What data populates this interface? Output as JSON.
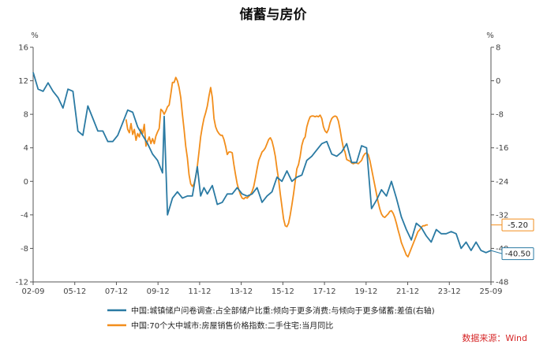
{
  "chart_data": {
    "type": "line",
    "title": "储蓄与房价",
    "left_unit": "%",
    "right_unit": "%",
    "x_tick_labels": [
      "02-09",
      "05-12",
      "07-12",
      "09-12",
      "11-12",
      "13-12",
      "15-12",
      "17-12",
      "19-12",
      "21-12",
      "23-12",
      "25-09"
    ],
    "x_range_months": [
      0,
      276
    ],
    "left_axis": {
      "range": [
        -12,
        16
      ],
      "ticks": [
        16,
        12,
        8,
        4,
        0,
        -4,
        -8,
        -12
      ]
    },
    "right_axis": {
      "range": [
        -48,
        8
      ],
      "ticks": [
        8,
        0,
        -8,
        -16,
        -24,
        -32,
        -40,
        -48
      ]
    },
    "series": [
      {
        "name": "中国:70个大中城市:房屋销售价格指数:二手住宅:当月同比",
        "axis": "left",
        "color": "#f28e1c",
        "end_label": "-5.20",
        "points": [
          [
            56,
            7.4
          ],
          [
            57,
            6.2
          ],
          [
            58,
            5.8
          ],
          [
            59,
            6.9
          ],
          [
            60,
            5.6
          ],
          [
            61,
            6.2
          ],
          [
            62,
            4.9
          ],
          [
            63,
            5.7
          ],
          [
            64,
            5.3
          ],
          [
            65,
            6.2
          ],
          [
            66,
            5.7
          ],
          [
            67,
            6.8
          ],
          [
            68,
            4.2
          ],
          [
            69,
            4.8
          ],
          [
            70,
            5.3
          ],
          [
            71,
            4.5
          ],
          [
            72,
            5.1
          ],
          [
            73,
            4.5
          ],
          [
            74,
            5.4
          ],
          [
            75,
            5.9
          ],
          [
            76,
            6.3
          ],
          [
            77,
            8.6
          ],
          [
            78,
            8.4
          ],
          [
            79,
            8.0
          ],
          [
            80,
            8.4
          ],
          [
            81,
            8.9
          ],
          [
            82,
            9.1
          ],
          [
            83,
            10.4
          ],
          [
            84,
            11.8
          ],
          [
            85,
            11.8
          ],
          [
            86,
            12.4
          ],
          [
            87,
            12.0
          ],
          [
            88,
            11.2
          ],
          [
            89,
            10.0
          ],
          [
            90,
            8.0
          ],
          [
            91,
            6.2
          ],
          [
            92,
            4.2
          ],
          [
            93,
            2.8
          ],
          [
            94,
            0.8
          ],
          [
            95,
            -0.3
          ],
          [
            96,
            -0.6
          ],
          [
            97,
            -0.3
          ],
          [
            98,
            0.5
          ],
          [
            99,
            1.8
          ],
          [
            100,
            3.5
          ],
          [
            101,
            5.3
          ],
          [
            102,
            6.5
          ],
          [
            103,
            7.5
          ],
          [
            104,
            8.2
          ],
          [
            105,
            9.0
          ],
          [
            106,
            10.2
          ],
          [
            107,
            11.2
          ],
          [
            108,
            10.0
          ],
          [
            109,
            7.5
          ],
          [
            110,
            6.5
          ],
          [
            111,
            6.0
          ],
          [
            112,
            5.7
          ],
          [
            113,
            5.5
          ],
          [
            114,
            5.5
          ],
          [
            115,
            5.0
          ],
          [
            116,
            4.2
          ],
          [
            117,
            3.2
          ],
          [
            118,
            3.5
          ],
          [
            119,
            3.5
          ],
          [
            120,
            3.4
          ],
          [
            121,
            2.0
          ],
          [
            122,
            0.8
          ],
          [
            123,
            -0.3
          ],
          [
            124,
            -1.0
          ],
          [
            125,
            -1.6
          ],
          [
            126,
            -2.0
          ],
          [
            127,
            -2.1
          ],
          [
            128,
            -1.9
          ],
          [
            129,
            -2.0
          ],
          [
            130,
            -1.8
          ],
          [
            131,
            -1.6
          ],
          [
            132,
            -1.2
          ],
          [
            133,
            -0.6
          ],
          [
            134,
            0.4
          ],
          [
            135,
            1.5
          ],
          [
            136,
            2.5
          ],
          [
            137,
            3.0
          ],
          [
            138,
            3.5
          ],
          [
            139,
            3.7
          ],
          [
            140,
            4.0
          ],
          [
            141,
            4.5
          ],
          [
            142,
            5.0
          ],
          [
            143,
            5.2
          ],
          [
            144,
            4.8
          ],
          [
            145,
            4.0
          ],
          [
            146,
            3.0
          ],
          [
            147,
            1.5
          ],
          [
            148,
            0.2
          ],
          [
            149,
            -1.5
          ],
          [
            150,
            -3.0
          ],
          [
            151,
            -4.5
          ],
          [
            152,
            -5.3
          ],
          [
            153,
            -5.4
          ],
          [
            154,
            -5.0
          ],
          [
            155,
            -4.0
          ],
          [
            156,
            -2.8
          ],
          [
            157,
            -1.5
          ],
          [
            158,
            0.0
          ],
          [
            159,
            1.5
          ],
          [
            160,
            2.0
          ],
          [
            161,
            3.0
          ],
          [
            162,
            4.3
          ],
          [
            163,
            5.0
          ],
          [
            164,
            5.3
          ],
          [
            165,
            6.5
          ],
          [
            166,
            7.2
          ],
          [
            167,
            7.7
          ],
          [
            168,
            7.8
          ],
          [
            169,
            7.8
          ],
          [
            170,
            7.7
          ],
          [
            171,
            7.8
          ],
          [
            172,
            7.7
          ],
          [
            173,
            7.9
          ],
          [
            174,
            7.5
          ],
          [
            175,
            6.5
          ],
          [
            176,
            6.0
          ],
          [
            177,
            5.8
          ],
          [
            178,
            6.2
          ],
          [
            179,
            7.0
          ],
          [
            180,
            7.5
          ],
          [
            181,
            7.7
          ],
          [
            182,
            7.8
          ],
          [
            183,
            7.7
          ],
          [
            184,
            7.2
          ],
          [
            185,
            6.2
          ],
          [
            186,
            5.0
          ],
          [
            187,
            4.0
          ],
          [
            188,
            3.5
          ],
          [
            189,
            2.6
          ],
          [
            190,
            2.5
          ],
          [
            191,
            2.4
          ],
          [
            192,
            2.2
          ],
          [
            193,
            2.1
          ],
          [
            194,
            2.2
          ],
          [
            195,
            2.2
          ],
          [
            196,
            2.1
          ],
          [
            197,
            2.3
          ],
          [
            198,
            2.5
          ],
          [
            199,
            3.0
          ],
          [
            200,
            3.3
          ],
          [
            201,
            3.4
          ],
          [
            202,
            3.2
          ],
          [
            203,
            2.5
          ],
          [
            204,
            1.5
          ],
          [
            205,
            0.5
          ],
          [
            206,
            -0.5
          ],
          [
            207,
            -1.5
          ],
          [
            208,
            -2.5
          ],
          [
            209,
            -3.3
          ],
          [
            210,
            -3.9
          ],
          [
            211,
            -4.2
          ],
          [
            212,
            -4.3
          ],
          [
            213,
            -4.1
          ],
          [
            214,
            -3.9
          ],
          [
            215,
            -3.6
          ],
          [
            216,
            -3.5
          ],
          [
            217,
            -3.8
          ],
          [
            218,
            -4.3
          ],
          [
            219,
            -5.0
          ],
          [
            220,
            -5.8
          ],
          [
            221,
            -6.5
          ],
          [
            222,
            -7.3
          ],
          [
            223,
            -7.8
          ],
          [
            224,
            -8.3
          ],
          [
            225,
            -8.8
          ],
          [
            226,
            -9.0
          ],
          [
            227,
            -8.5
          ],
          [
            228,
            -8.0
          ],
          [
            229,
            -7.5
          ],
          [
            230,
            -7.0
          ],
          [
            231,
            -6.5
          ],
          [
            232,
            -6.0
          ],
          [
            233,
            -5.8
          ],
          [
            234,
            -5.5
          ],
          [
            235,
            -5.3
          ],
          [
            236,
            -5.3
          ],
          [
            237,
            -5.2
          ],
          [
            238,
            -5.2
          ]
        ]
      },
      {
        "name": "中国:城镇储户问卷调查:占全部储户比重:倾向于更多消费:与倾向于更多储蓄:差值(右轴)",
        "axis": "right",
        "color": "#2a7aa3",
        "end_label": "-40.50",
        "points": [
          [
            0,
            2.0
          ],
          [
            3,
            -2.0
          ],
          [
            6,
            -2.5
          ],
          [
            9,
            -0.5
          ],
          [
            12,
            -2.5
          ],
          [
            15,
            -4.0
          ],
          [
            18,
            -6.5
          ],
          [
            21,
            -2.0
          ],
          [
            24,
            -2.5
          ],
          [
            27,
            -12.0
          ],
          [
            30,
            -13.0
          ],
          [
            33,
            -6.0
          ],
          [
            36,
            -9.0
          ],
          [
            39,
            -12.0
          ],
          [
            42,
            -12.0
          ],
          [
            45,
            -14.5
          ],
          [
            48,
            -14.5
          ],
          [
            51,
            -13.0
          ],
          [
            54,
            -10.0
          ],
          [
            57,
            -7.0
          ],
          [
            60,
            -7.5
          ],
          [
            63,
            -11.0
          ],
          [
            66,
            -13.0
          ],
          [
            69,
            -15.0
          ],
          [
            72,
            -17.5
          ],
          [
            75,
            -19.0
          ],
          [
            78,
            -22.0
          ],
          [
            79,
            -8.5
          ],
          [
            81,
            -32.0
          ],
          [
            84,
            -28.0
          ],
          [
            87,
            -26.5
          ],
          [
            90,
            -28.0
          ],
          [
            93,
            -27.5
          ],
          [
            96,
            -27.5
          ],
          [
            99,
            -20.5
          ],
          [
            101,
            -27.5
          ],
          [
            103,
            -25.5
          ],
          [
            105,
            -27.0
          ],
          [
            108,
            -25.0
          ],
          [
            111,
            -29.5
          ],
          [
            114,
            -29.0
          ],
          [
            117,
            -27.0
          ],
          [
            120,
            -27.0
          ],
          [
            123,
            -25.5
          ],
          [
            126,
            -27.0
          ],
          [
            129,
            -27.5
          ],
          [
            132,
            -27.0
          ],
          [
            135,
            -25.5
          ],
          [
            138,
            -29.0
          ],
          [
            141,
            -27.5
          ],
          [
            144,
            -26.5
          ],
          [
            147,
            -23.0
          ],
          [
            150,
            -24.0
          ],
          [
            153,
            -21.5
          ],
          [
            156,
            -24.0
          ],
          [
            159,
            -23.0
          ],
          [
            162,
            -22.5
          ],
          [
            165,
            -19.0
          ],
          [
            168,
            -18.0
          ],
          [
            171,
            -16.5
          ],
          [
            174,
            -15.0
          ],
          [
            177,
            -14.5
          ],
          [
            180,
            -17.5
          ],
          [
            183,
            -18.0
          ],
          [
            186,
            -17.0
          ],
          [
            189,
            -15.0
          ],
          [
            192,
            -19.5
          ],
          [
            195,
            -19.5
          ],
          [
            198,
            -15.5
          ],
          [
            201,
            -16.0
          ],
          [
            204,
            -30.5
          ],
          [
            207,
            -28.5
          ],
          [
            210,
            -26.0
          ],
          [
            213,
            -27.5
          ],
          [
            216,
            -24.0
          ],
          [
            219,
            -28.0
          ],
          [
            222,
            -32.5
          ],
          [
            225,
            -35.5
          ],
          [
            228,
            -38.0
          ],
          [
            231,
            -34.0
          ],
          [
            234,
            -35.0
          ],
          [
            237,
            -37.0
          ],
          [
            240,
            -38.5
          ],
          [
            243,
            -35.5
          ],
          [
            246,
            -36.5
          ],
          [
            249,
            -36.5
          ],
          [
            252,
            -36.0
          ],
          [
            255,
            -36.5
          ],
          [
            258,
            -40.0
          ],
          [
            261,
            -38.5
          ],
          [
            264,
            -40.5
          ],
          [
            267,
            -38.5
          ],
          [
            270,
            -40.5
          ],
          [
            273,
            -41.0
          ],
          [
            276,
            -40.5
          ]
        ]
      }
    ],
    "legend_position": "bottom",
    "source": "数据来源：Wind"
  }
}
